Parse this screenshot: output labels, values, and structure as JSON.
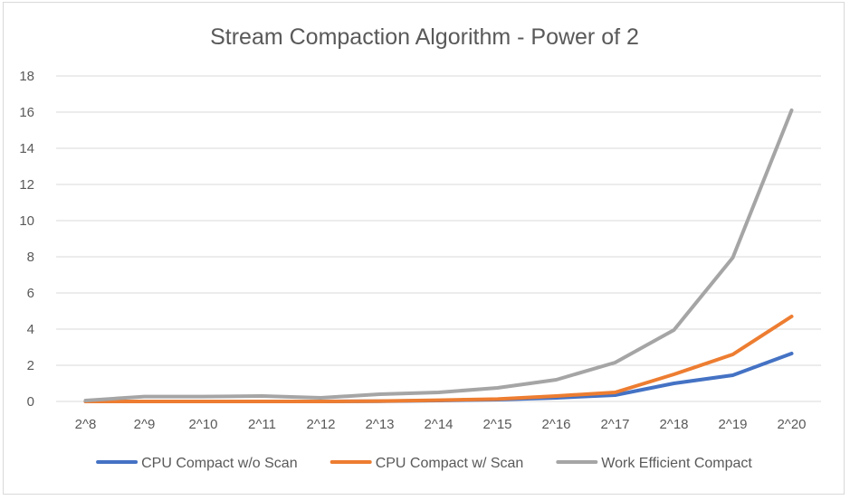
{
  "chart_data": {
    "type": "line",
    "title": "Stream Compaction Algorithm - Power of 2",
    "xlabel": "",
    "ylabel": "",
    "categories": [
      "2^8",
      "2^9",
      "2^10",
      "2^11",
      "2^12",
      "2^13",
      "2^14",
      "2^15",
      "2^16",
      "2^17",
      "2^18",
      "2^19",
      "2^20"
    ],
    "ylim": [
      0,
      18
    ],
    "yticks": [
      0,
      2,
      4,
      6,
      8,
      10,
      12,
      14,
      16,
      18
    ],
    "grid": true,
    "legend_position": "bottom",
    "series": [
      {
        "name": "CPU Compact w/o Scan",
        "color": "#4472c4",
        "values": [
          0.0,
          0.0,
          0.0,
          0.0,
          0.0,
          0.01,
          0.05,
          0.1,
          0.2,
          0.35,
          1.0,
          1.45,
          2.65
        ]
      },
      {
        "name": "CPU Compact w/ Scan",
        "color": "#ed7d31",
        "values": [
          0.0,
          0.0,
          0.0,
          0.0,
          0.0,
          0.02,
          0.07,
          0.13,
          0.3,
          0.5,
          1.5,
          2.6,
          4.7
        ]
      },
      {
        "name": "Work Efficient Compact",
        "color": "#a5a5a5",
        "values": [
          0.05,
          0.27,
          0.27,
          0.3,
          0.2,
          0.4,
          0.5,
          0.75,
          1.2,
          2.15,
          3.95,
          7.95,
          16.1
        ]
      }
    ]
  }
}
